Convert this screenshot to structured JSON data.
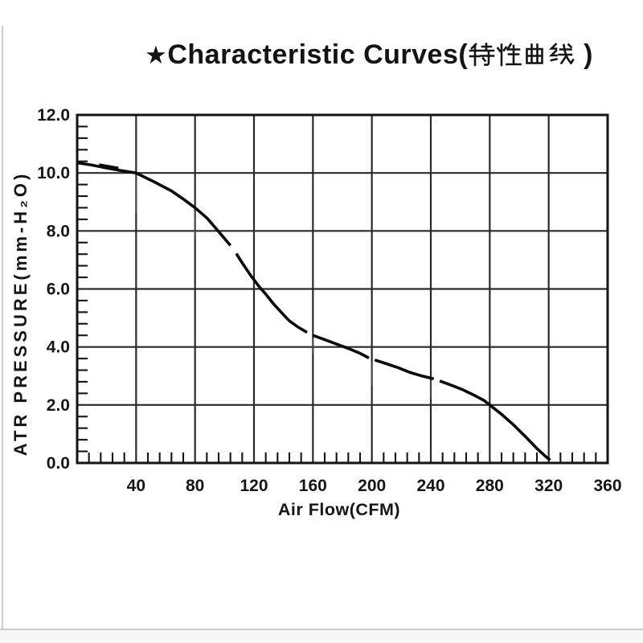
{
  "title": {
    "star": "★",
    "latin": "Characteristic Curves(",
    "cjk": "特性曲线",
    "suffix": " )"
  },
  "colors": {
    "background": "#ffffff",
    "curve": "#0b0b0b",
    "grid": "#2a2a2a",
    "frame": "#141414",
    "tick": "#141414",
    "artifact": "#4a4a4a",
    "text": "#161616"
  },
  "chart_data": {
    "type": "line",
    "title": "★Characteristic Curves(特性曲线 )",
    "xlabel": "Air Flow(CFM)",
    "ylabel": "ATR PRESSURE(mm-H₂O)",
    "xlim": [
      0,
      360
    ],
    "ylim": [
      0,
      12
    ],
    "x_ticks": [
      40,
      80,
      120,
      160,
      200,
      240,
      280,
      320,
      360
    ],
    "x_tick_labels": [
      "40",
      "80",
      "120",
      "160",
      "200",
      "240",
      "280",
      "320",
      "360"
    ],
    "y_ticks": [
      0,
      2,
      4,
      6,
      8,
      10,
      12
    ],
    "y_tick_labels": [
      "0.0",
      "2.0",
      "4.0",
      "6.0",
      "8.0",
      "10.0",
      "12.0"
    ],
    "x_minor_step": 8,
    "y_minor_step": 0.4,
    "grid": true,
    "legend": "none",
    "series": [
      {
        "name": "air-pressure-vs-air-flow",
        "points": [
          [
            0,
            10.35
          ],
          [
            10,
            10.27
          ],
          [
            20,
            10.17
          ],
          [
            30,
            10.08
          ],
          [
            40,
            10.0
          ],
          [
            52,
            9.7
          ],
          [
            64,
            9.38
          ],
          [
            72,
            9.1
          ],
          [
            80,
            8.8
          ],
          [
            88,
            8.45
          ],
          [
            96,
            7.98
          ],
          [
            104,
            7.5
          ],
          null,
          [
            108,
            7.22
          ],
          [
            112,
            6.9
          ],
          [
            118,
            6.45
          ],
          [
            124,
            6.05
          ],
          [
            128,
            5.82
          ],
          [
            133,
            5.5
          ],
          [
            138,
            5.22
          ],
          [
            144,
            4.9
          ],
          [
            150,
            4.68
          ],
          [
            156,
            4.5
          ],
          null,
          [
            160,
            4.4
          ],
          [
            168,
            4.25
          ],
          [
            176,
            4.1
          ],
          [
            184,
            3.95
          ],
          [
            192,
            3.78
          ],
          [
            198,
            3.62
          ],
          null,
          [
            202,
            3.55
          ],
          [
            210,
            3.42
          ],
          [
            218,
            3.28
          ],
          [
            226,
            3.12
          ],
          [
            234,
            3.0
          ],
          [
            242,
            2.9
          ],
          null,
          [
            246,
            2.83
          ],
          [
            254,
            2.68
          ],
          [
            262,
            2.52
          ],
          [
            270,
            2.32
          ],
          [
            276,
            2.16
          ],
          [
            280,
            2.0
          ],
          [
            288,
            1.68
          ],
          [
            296,
            1.32
          ],
          [
            304,
            0.92
          ],
          [
            312,
            0.5
          ],
          [
            318,
            0.22
          ],
          [
            321,
            0.1
          ]
        ]
      }
    ]
  }
}
